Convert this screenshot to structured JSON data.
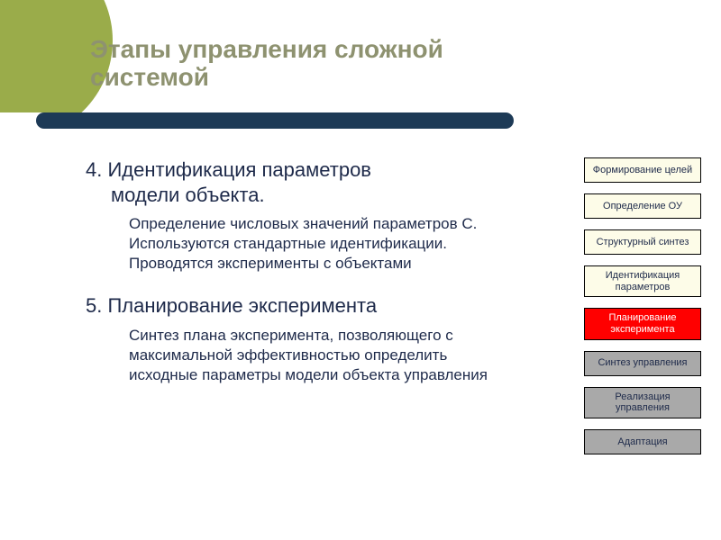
{
  "colors": {
    "accent_circle": "#9aac4a",
    "divider_bar": "#1d3a56",
    "title_text": "#8e9270",
    "body_text": "#1e2a4a",
    "box_light": "#fdfce8",
    "box_highlight_bg": "#ff0000",
    "box_highlight_text": "#ffffff",
    "box_done_bg": "#a9a9a9",
    "box_done_text": "#1e2a4a"
  },
  "title": "Этапы управления сложной системой",
  "sections": [
    {
      "heading_line1": "4. Идентификация параметров",
      "heading_line2": "модели объекта.",
      "body": "Определение числовых значений параметров С. Используются стандартные идентификации. Проводятся эксперименты с объектами"
    },
    {
      "heading_line1": "5. Планирование эксперимента",
      "heading_line2": "",
      "body": "Синтез плана эксперимента, позволяющего с максимальной эффективностью определить исходные параметры модели объекта управления"
    }
  ],
  "sidebar": [
    {
      "label": "Формирование целей",
      "style": "light"
    },
    {
      "label": "Определение ОУ",
      "style": "light"
    },
    {
      "label": "Структурный синтез",
      "style": "light"
    },
    {
      "label": "Идентификация параметров",
      "style": "light"
    },
    {
      "label": "Планирование эксперимента",
      "style": "highlight"
    },
    {
      "label": "Синтез управления",
      "style": "done"
    },
    {
      "label": "Реализация управления",
      "style": "done"
    },
    {
      "label": "Адаптация",
      "style": "done"
    }
  ]
}
